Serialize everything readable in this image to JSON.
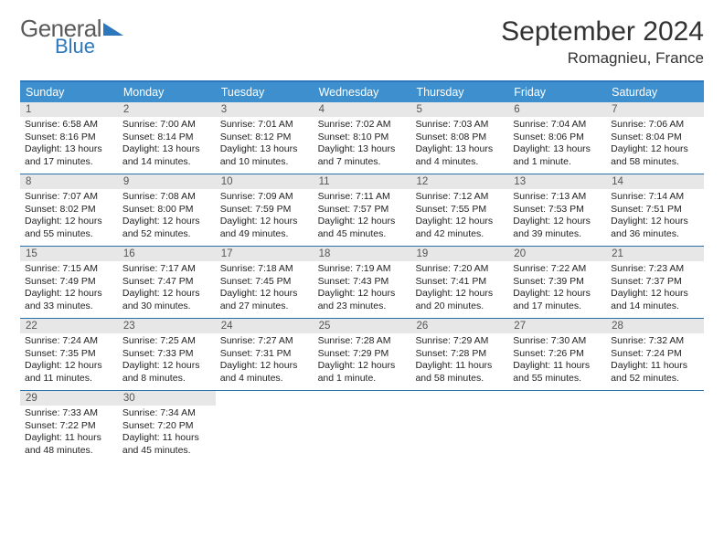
{
  "logo": {
    "text1": "General",
    "text2": "Blue"
  },
  "title": "September 2024",
  "location": "Romagnieu, France",
  "weekday_labels": [
    "Sunday",
    "Monday",
    "Tuesday",
    "Wednesday",
    "Thursday",
    "Friday",
    "Saturday"
  ],
  "colors": {
    "header_bg": "#3d8fce",
    "accent_border": "#2a6fa8",
    "daynum_bg": "#e7e7e7",
    "logo_blue": "#2d78bd"
  },
  "weeks": [
    [
      {
        "n": "1",
        "sunrise": "Sunrise: 6:58 AM",
        "sunset": "Sunset: 8:16 PM",
        "day": "Daylight: 13 hours and 17 minutes."
      },
      {
        "n": "2",
        "sunrise": "Sunrise: 7:00 AM",
        "sunset": "Sunset: 8:14 PM",
        "day": "Daylight: 13 hours and 14 minutes."
      },
      {
        "n": "3",
        "sunrise": "Sunrise: 7:01 AM",
        "sunset": "Sunset: 8:12 PM",
        "day": "Daylight: 13 hours and 10 minutes."
      },
      {
        "n": "4",
        "sunrise": "Sunrise: 7:02 AM",
        "sunset": "Sunset: 8:10 PM",
        "day": "Daylight: 13 hours and 7 minutes."
      },
      {
        "n": "5",
        "sunrise": "Sunrise: 7:03 AM",
        "sunset": "Sunset: 8:08 PM",
        "day": "Daylight: 13 hours and 4 minutes."
      },
      {
        "n": "6",
        "sunrise": "Sunrise: 7:04 AM",
        "sunset": "Sunset: 8:06 PM",
        "day": "Daylight: 13 hours and 1 minute."
      },
      {
        "n": "7",
        "sunrise": "Sunrise: 7:06 AM",
        "sunset": "Sunset: 8:04 PM",
        "day": "Daylight: 12 hours and 58 minutes."
      }
    ],
    [
      {
        "n": "8",
        "sunrise": "Sunrise: 7:07 AM",
        "sunset": "Sunset: 8:02 PM",
        "day": "Daylight: 12 hours and 55 minutes."
      },
      {
        "n": "9",
        "sunrise": "Sunrise: 7:08 AM",
        "sunset": "Sunset: 8:00 PM",
        "day": "Daylight: 12 hours and 52 minutes."
      },
      {
        "n": "10",
        "sunrise": "Sunrise: 7:09 AM",
        "sunset": "Sunset: 7:59 PM",
        "day": "Daylight: 12 hours and 49 minutes."
      },
      {
        "n": "11",
        "sunrise": "Sunrise: 7:11 AM",
        "sunset": "Sunset: 7:57 PM",
        "day": "Daylight: 12 hours and 45 minutes."
      },
      {
        "n": "12",
        "sunrise": "Sunrise: 7:12 AM",
        "sunset": "Sunset: 7:55 PM",
        "day": "Daylight: 12 hours and 42 minutes."
      },
      {
        "n": "13",
        "sunrise": "Sunrise: 7:13 AM",
        "sunset": "Sunset: 7:53 PM",
        "day": "Daylight: 12 hours and 39 minutes."
      },
      {
        "n": "14",
        "sunrise": "Sunrise: 7:14 AM",
        "sunset": "Sunset: 7:51 PM",
        "day": "Daylight: 12 hours and 36 minutes."
      }
    ],
    [
      {
        "n": "15",
        "sunrise": "Sunrise: 7:15 AM",
        "sunset": "Sunset: 7:49 PM",
        "day": "Daylight: 12 hours and 33 minutes."
      },
      {
        "n": "16",
        "sunrise": "Sunrise: 7:17 AM",
        "sunset": "Sunset: 7:47 PM",
        "day": "Daylight: 12 hours and 30 minutes."
      },
      {
        "n": "17",
        "sunrise": "Sunrise: 7:18 AM",
        "sunset": "Sunset: 7:45 PM",
        "day": "Daylight: 12 hours and 27 minutes."
      },
      {
        "n": "18",
        "sunrise": "Sunrise: 7:19 AM",
        "sunset": "Sunset: 7:43 PM",
        "day": "Daylight: 12 hours and 23 minutes."
      },
      {
        "n": "19",
        "sunrise": "Sunrise: 7:20 AM",
        "sunset": "Sunset: 7:41 PM",
        "day": "Daylight: 12 hours and 20 minutes."
      },
      {
        "n": "20",
        "sunrise": "Sunrise: 7:22 AM",
        "sunset": "Sunset: 7:39 PM",
        "day": "Daylight: 12 hours and 17 minutes."
      },
      {
        "n": "21",
        "sunrise": "Sunrise: 7:23 AM",
        "sunset": "Sunset: 7:37 PM",
        "day": "Daylight: 12 hours and 14 minutes."
      }
    ],
    [
      {
        "n": "22",
        "sunrise": "Sunrise: 7:24 AM",
        "sunset": "Sunset: 7:35 PM",
        "day": "Daylight: 12 hours and 11 minutes."
      },
      {
        "n": "23",
        "sunrise": "Sunrise: 7:25 AM",
        "sunset": "Sunset: 7:33 PM",
        "day": "Daylight: 12 hours and 8 minutes."
      },
      {
        "n": "24",
        "sunrise": "Sunrise: 7:27 AM",
        "sunset": "Sunset: 7:31 PM",
        "day": "Daylight: 12 hours and 4 minutes."
      },
      {
        "n": "25",
        "sunrise": "Sunrise: 7:28 AM",
        "sunset": "Sunset: 7:29 PM",
        "day": "Daylight: 12 hours and 1 minute."
      },
      {
        "n": "26",
        "sunrise": "Sunrise: 7:29 AM",
        "sunset": "Sunset: 7:28 PM",
        "day": "Daylight: 11 hours and 58 minutes."
      },
      {
        "n": "27",
        "sunrise": "Sunrise: 7:30 AM",
        "sunset": "Sunset: 7:26 PM",
        "day": "Daylight: 11 hours and 55 minutes."
      },
      {
        "n": "28",
        "sunrise": "Sunrise: 7:32 AM",
        "sunset": "Sunset: 7:24 PM",
        "day": "Daylight: 11 hours and 52 minutes."
      }
    ],
    [
      {
        "n": "29",
        "sunrise": "Sunrise: 7:33 AM",
        "sunset": "Sunset: 7:22 PM",
        "day": "Daylight: 11 hours and 48 minutes."
      },
      {
        "n": "30",
        "sunrise": "Sunrise: 7:34 AM",
        "sunset": "Sunset: 7:20 PM",
        "day": "Daylight: 11 hours and 45 minutes."
      },
      {
        "empty": true
      },
      {
        "empty": true
      },
      {
        "empty": true
      },
      {
        "empty": true
      },
      {
        "empty": true
      }
    ]
  ]
}
